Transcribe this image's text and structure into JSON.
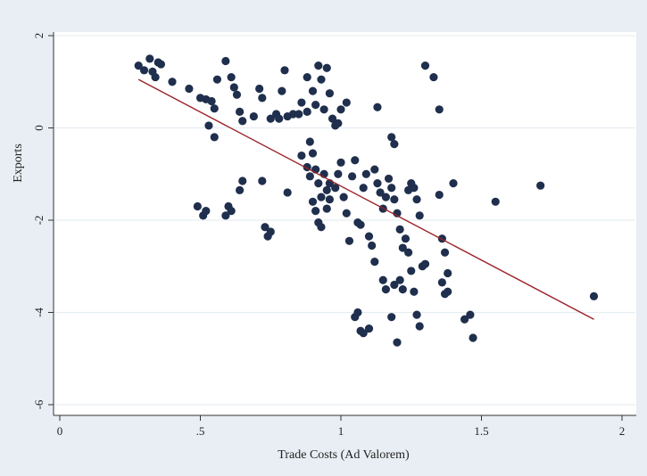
{
  "chart_data": {
    "type": "scatter",
    "title": "",
    "xlabel": "Trade Costs (Ad Valorem)",
    "ylabel": "Exports",
    "xlim": [
      0,
      2
    ],
    "ylim": [
      -6,
      2
    ],
    "x_ticks": [
      0,
      0.5,
      1,
      1.5,
      2
    ],
    "x_tick_labels": [
      "0",
      ".5",
      "1",
      "1.5",
      "2"
    ],
    "y_ticks": [
      -6,
      -4,
      -2,
      0,
      2
    ],
    "y_tick_labels": [
      "-6",
      "-4",
      "-2",
      "0",
      "2"
    ],
    "grid": "horizontal",
    "colors": {
      "points": "#1f2f4d",
      "fit_line": "#9b2226",
      "plot_bg": "#ffffff",
      "outer_bg": "#e8eef3"
    },
    "fit_line": {
      "x": [
        0.28,
        1.9
      ],
      "y": [
        1.05,
        -4.15
      ]
    },
    "points": [
      [
        0.28,
        1.35
      ],
      [
        0.3,
        1.25
      ],
      [
        0.32,
        1.5
      ],
      [
        0.33,
        1.22
      ],
      [
        0.35,
        1.42
      ],
      [
        0.36,
        1.38
      ],
      [
        0.34,
        1.1
      ],
      [
        0.4,
        1.0
      ],
      [
        0.46,
        0.85
      ],
      [
        0.5,
        0.65
      ],
      [
        0.52,
        0.62
      ],
      [
        0.54,
        0.58
      ],
      [
        0.55,
        0.42
      ],
      [
        0.56,
        1.05
      ],
      [
        0.59,
        1.45
      ],
      [
        0.61,
        1.1
      ],
      [
        0.62,
        0.88
      ],
      [
        0.63,
        0.72
      ],
      [
        0.64,
        0.35
      ],
      [
        0.65,
        0.15
      ],
      [
        0.69,
        0.25
      ],
      [
        0.71,
        0.85
      ],
      [
        0.72,
        0.65
      ],
      [
        0.75,
        0.2
      ],
      [
        0.77,
        0.3
      ],
      [
        0.78,
        0.2
      ],
      [
        0.79,
        0.8
      ],
      [
        0.8,
        1.25
      ],
      [
        0.81,
        0.25
      ],
      [
        0.83,
        0.3
      ],
      [
        0.85,
        0.3
      ],
      [
        0.86,
        0.55
      ],
      [
        0.88,
        1.1
      ],
      [
        0.88,
        0.35
      ],
      [
        0.9,
        0.8
      ],
      [
        0.91,
        0.5
      ],
      [
        0.92,
        1.35
      ],
      [
        0.93,
        1.05
      ],
      [
        0.94,
        0.4
      ],
      [
        0.95,
        1.3
      ],
      [
        0.96,
        0.75
      ],
      [
        0.97,
        0.2
      ],
      [
        0.98,
        0.05
      ],
      [
        0.99,
        0.1
      ],
      [
        1.0,
        0.4
      ],
      [
        1.02,
        0.55
      ],
      [
        0.53,
        0.05
      ],
      [
        0.55,
        -0.2
      ],
      [
        0.49,
        -1.7
      ],
      [
        0.51,
        -1.9
      ],
      [
        0.52,
        -1.8
      ],
      [
        0.59,
        -1.9
      ],
      [
        0.6,
        -1.7
      ],
      [
        0.61,
        -1.8
      ],
      [
        0.64,
        -1.35
      ],
      [
        0.65,
        -1.15
      ],
      [
        0.72,
        -1.15
      ],
      [
        0.73,
        -2.15
      ],
      [
        0.74,
        -2.35
      ],
      [
        0.75,
        -2.25
      ],
      [
        0.81,
        -1.4
      ],
      [
        0.86,
        -0.6
      ],
      [
        0.88,
        -0.85
      ],
      [
        0.89,
        -0.3
      ],
      [
        0.89,
        -1.05
      ],
      [
        0.9,
        -0.55
      ],
      [
        0.91,
        -0.9
      ],
      [
        0.92,
        -1.2
      ],
      [
        0.93,
        -1.5
      ],
      [
        0.94,
        -1.0
      ],
      [
        0.95,
        -1.35
      ],
      [
        0.96,
        -1.2
      ],
      [
        0.9,
        -1.6
      ],
      [
        0.91,
        -1.8
      ],
      [
        0.92,
        -2.05
      ],
      [
        0.93,
        -2.15
      ],
      [
        0.95,
        -1.75
      ],
      [
        0.96,
        -1.55
      ],
      [
        0.98,
        -1.3
      ],
      [
        0.99,
        -1.0
      ],
      [
        1.0,
        -0.75
      ],
      [
        1.01,
        -1.5
      ],
      [
        1.02,
        -1.85
      ],
      [
        1.03,
        -2.45
      ],
      [
        1.04,
        -1.05
      ],
      [
        1.05,
        -0.7
      ],
      [
        1.06,
        -2.05
      ],
      [
        1.07,
        -2.1
      ],
      [
        1.08,
        -1.3
      ],
      [
        1.09,
        -1.0
      ],
      [
        1.1,
        -2.35
      ],
      [
        1.11,
        -2.55
      ],
      [
        1.12,
        -0.9
      ],
      [
        1.13,
        -1.2
      ],
      [
        1.14,
        -1.4
      ],
      [
        1.15,
        -1.75
      ],
      [
        1.16,
        -1.5
      ],
      [
        1.17,
        -1.1
      ],
      [
        1.18,
        -1.3
      ],
      [
        1.19,
        -1.55
      ],
      [
        1.2,
        -1.85
      ],
      [
        1.21,
        -2.2
      ],
      [
        1.22,
        -2.6
      ],
      [
        1.23,
        -2.4
      ],
      [
        1.24,
        -1.35
      ],
      [
        1.25,
        -1.2
      ],
      [
        1.26,
        -1.3
      ],
      [
        1.27,
        -1.55
      ],
      [
        1.28,
        -1.9
      ],
      [
        1.3,
        -2.95
      ],
      [
        1.13,
        0.45
      ],
      [
        1.18,
        -0.2
      ],
      [
        1.19,
        -0.35
      ],
      [
        1.05,
        -4.1
      ],
      [
        1.06,
        -4.0
      ],
      [
        1.07,
        -4.4
      ],
      [
        1.08,
        -4.45
      ],
      [
        1.1,
        -4.35
      ],
      [
        1.12,
        -2.9
      ],
      [
        1.15,
        -3.3
      ],
      [
        1.16,
        -3.5
      ],
      [
        1.18,
        -4.1
      ],
      [
        1.19,
        -3.4
      ],
      [
        1.2,
        -4.65
      ],
      [
        1.21,
        -3.3
      ],
      [
        1.22,
        -3.5
      ],
      [
        1.24,
        -2.7
      ],
      [
        1.25,
        -3.1
      ],
      [
        1.26,
        -3.55
      ],
      [
        1.27,
        -4.05
      ],
      [
        1.28,
        -4.3
      ],
      [
        1.29,
        -3.0
      ],
      [
        1.3,
        1.35
      ],
      [
        1.33,
        1.1
      ],
      [
        1.35,
        0.4
      ],
      [
        1.35,
        -1.45
      ],
      [
        1.36,
        -2.4
      ],
      [
        1.37,
        -2.7
      ],
      [
        1.38,
        -3.15
      ],
      [
        1.36,
        -3.35
      ],
      [
        1.37,
        -3.6
      ],
      [
        1.38,
        -3.55
      ],
      [
        1.4,
        -1.2
      ],
      [
        1.44,
        -4.15
      ],
      [
        1.46,
        -4.05
      ],
      [
        1.47,
        -4.55
      ],
      [
        1.55,
        -1.6
      ],
      [
        1.71,
        -1.25
      ],
      [
        1.9,
        -3.65
      ]
    ]
  }
}
